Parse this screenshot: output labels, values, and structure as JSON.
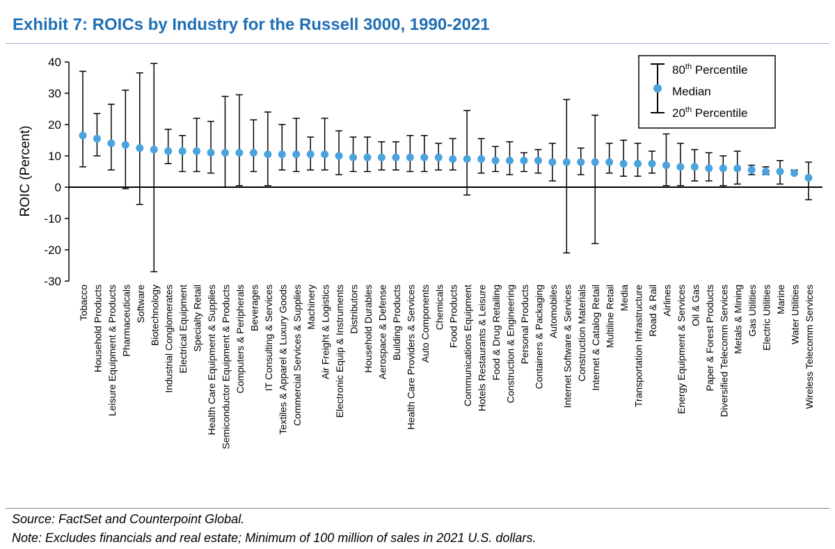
{
  "header": {
    "title": "Exhibit 7: ROICs by Industry for the Russell 3000, 1990-2021"
  },
  "footer": {
    "source": "Source: FactSet and Counterpoint Global.",
    "note": "Note: Excludes financials and real estate; Minimum of 100 million of sales in 2021 U.S. dollars."
  },
  "legend": {
    "high_base": "80",
    "high_sup": "th",
    "high_rest": " Percentile",
    "median": "Median",
    "low_base": "20",
    "low_sup": "th",
    "low_rest": " Percentile"
  },
  "colors": {
    "median_dot": "#4aa3df",
    "title": "#1f6fb5"
  },
  "chart_data": {
    "type": "errorbar",
    "ylabel": "ROIC (Percent)",
    "ylim": [
      -30,
      40
    ],
    "yticks": [
      40,
      30,
      20,
      10,
      0,
      -10,
      -20,
      -30
    ],
    "legend_position": "top-right",
    "grid": false,
    "categories": [
      "Tobacco",
      "Household Products",
      "Leisure Equipment & Products",
      "Pharmaceuticals",
      "Software",
      "Biotechnology",
      "Industrial Conglomerates",
      "Electrical Equipment",
      "Specialty Retail",
      "Health Care Equipment & Supplies",
      "Semiconductor Equipment & Products",
      "Computers & Peripherals",
      "Beverages",
      "IT Consulting & Services",
      "Textiles & Apparel & Luxury Goods",
      "Commercial Services & Supplies",
      "Machinery",
      "Air Freight & Logistics",
      "Electronic Equip & Instruments",
      "Distributors",
      "Household Durables",
      "Aerospace & Defense",
      "Building Products",
      "Health Care Providers & Services",
      "Auto Components",
      "Chemicals",
      "Food Products",
      "Communications Equipment",
      "Hotels Restaurants & Leisure",
      "Food & Drug Retailing",
      "Construction & Engineering",
      "Personal Products",
      "Containers & Packaging",
      "Automobiles",
      "Internet Software & Services",
      "Construction Materials",
      "Internet & Catalog Retail",
      "Multiline Retail",
      "Media",
      "Transportation Infrastructure",
      "Road & Rail",
      "Airlines",
      "Energy Equipment & Services",
      "Oil & Gas",
      "Paper & Forest Products",
      "Diversified Telecomm Services",
      "Metals & Mining",
      "Gas Utilities",
      "Electric Utilities",
      "Marine",
      "Water Utilities",
      "Wireless Telecomm Services"
    ],
    "series": [
      {
        "name": "80th Percentile",
        "values": [
          37,
          23.5,
          26.5,
          31,
          36.5,
          39.5,
          18.5,
          16.5,
          22,
          21,
          29,
          29.5,
          21.5,
          24,
          20,
          22,
          16,
          22,
          18,
          16,
          16,
          14.5,
          14.5,
          16.5,
          16.5,
          14,
          15.5,
          24.5,
          15.5,
          13,
          14.5,
          11,
          12,
          14,
          28,
          12.5,
          23,
          14,
          15,
          14,
          11.5,
          17,
          14,
          12,
          11,
          10,
          11.5,
          7,
          6.5,
          8.5,
          5.5,
          8
        ]
      },
      {
        "name": "Median",
        "values": [
          16.5,
          15.5,
          14,
          13.5,
          12.5,
          12,
          11.5,
          11.5,
          11.5,
          11,
          11,
          11,
          11,
          10.5,
          10.5,
          10.5,
          10.5,
          10.5,
          10,
          9.5,
          9.5,
          9.5,
          9.5,
          9.5,
          9.5,
          9.5,
          9,
          9,
          9,
          8.5,
          8.5,
          8.5,
          8.5,
          8,
          8,
          8,
          8,
          8,
          7.5,
          7.5,
          7.5,
          7,
          6.5,
          6.5,
          6,
          6,
          6,
          5.5,
          5,
          5,
          4.5,
          3
        ]
      },
      {
        "name": "20th Percentile",
        "values": [
          6.5,
          10,
          5.5,
          -0.5,
          -5.5,
          -27,
          7.5,
          5,
          5,
          4.5,
          0,
          0.5,
          5,
          0.5,
          5.5,
          5,
          5.5,
          5.5,
          4,
          5,
          5,
          5.5,
          5.5,
          5,
          5,
          5.5,
          5.5,
          -2.5,
          4.5,
          5,
          4,
          5,
          4.5,
          2,
          -21,
          4,
          -18,
          4.5,
          3.5,
          3.5,
          4.5,
          0.5,
          0.5,
          2,
          2,
          0.5,
          1,
          4,
          4,
          1,
          4,
          -4
        ]
      }
    ]
  }
}
